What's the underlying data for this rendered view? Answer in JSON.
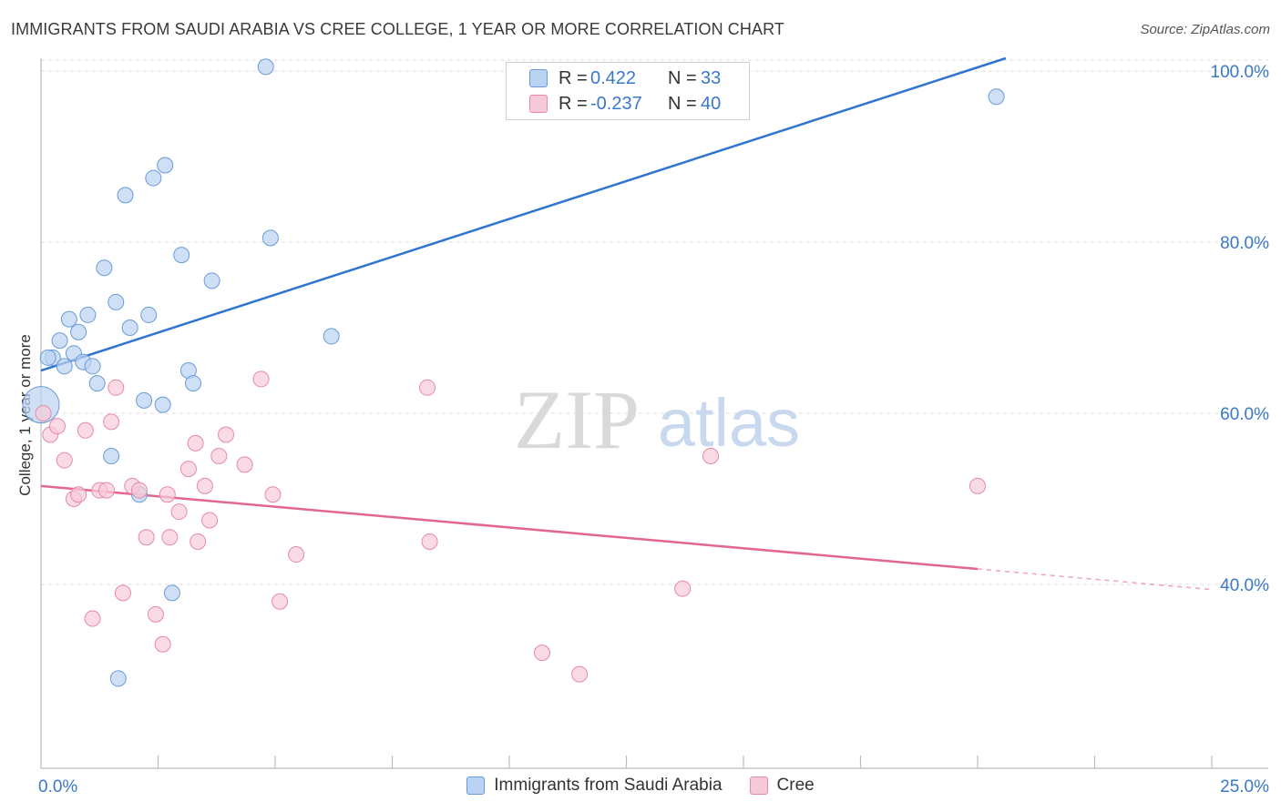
{
  "header": {
    "title": "IMMIGRANTS FROM SAUDI ARABIA VS CREE COLLEGE, 1 YEAR OR MORE CORRELATION CHART",
    "source": "Source: ZipAtlas.com"
  },
  "watermark": {
    "zip": "ZIP",
    "atlas": "atlas"
  },
  "colors": {
    "blue_fill": "#bad3f2",
    "blue_stroke": "#6a9bd8",
    "blue_line": "#2f74d0",
    "pink_fill": "#f8cad8",
    "pink_stroke": "#e68aa6",
    "pink_line": "#e3668f",
    "accent_text": "#3a78c9",
    "grid": "#dedede"
  },
  "stats": {
    "blue": {
      "r_label": "R =",
      "r_value": "0.422",
      "n_label": "N =",
      "n_value": "33"
    },
    "pink": {
      "r_label": "R =",
      "r_value": "-0.237",
      "n_label": "N =",
      "n_value": "40"
    }
  },
  "legend": {
    "blue_label": "Immigrants from Saudi Arabia",
    "pink_label": "Cree"
  },
  "chart_data": {
    "type": "scatter",
    "title": "IMMIGRANTS FROM SAUDI ARABIA VS CREE COLLEGE, 1 YEAR OR MORE CORRELATION CHART",
    "xlabel": "",
    "ylabel": "College, 1 year or more",
    "xlim": [
      0,
      25
    ],
    "ylim": [
      18.5,
      101.5
    ],
    "x_tick_labels": [
      {
        "value": 0,
        "label": "0.0%"
      },
      {
        "value": 25,
        "label": "25.0%"
      }
    ],
    "x_minor_ticks": [
      2.5,
      5,
      7.5,
      10,
      12.5,
      15,
      17.5,
      20,
      22.5,
      25
    ],
    "y_ticks": [
      {
        "value": 40,
        "label": "40.0%"
      },
      {
        "value": 60,
        "label": "60.0%"
      },
      {
        "value": 80,
        "label": "80.0%"
      },
      {
        "value": 100,
        "label": "100.0%"
      }
    ],
    "grid": true,
    "series": [
      {
        "name": "Immigrants from Saudi Arabia",
        "color_key": "blue",
        "points": [
          {
            "x": 0.0,
            "y": 61.0,
            "size": "large"
          },
          {
            "x": 0.25,
            "y": 66.5
          },
          {
            "x": 0.4,
            "y": 68.5
          },
          {
            "x": 0.5,
            "y": 65.5
          },
          {
            "x": 0.6,
            "y": 71.0
          },
          {
            "x": 0.7,
            "y": 67.0
          },
          {
            "x": 0.8,
            "y": 69.5
          },
          {
            "x": 0.9,
            "y": 66.0
          },
          {
            "x": 1.0,
            "y": 71.5
          },
          {
            "x": 1.1,
            "y": 65.5
          },
          {
            "x": 1.2,
            "y": 63.5
          },
          {
            "x": 1.35,
            "y": 77.0
          },
          {
            "x": 1.5,
            "y": 55.0
          },
          {
            "x": 1.6,
            "y": 73.0
          },
          {
            "x": 1.8,
            "y": 85.5
          },
          {
            "x": 1.9,
            "y": 70.0
          },
          {
            "x": 2.1,
            "y": 50.5
          },
          {
            "x": 2.2,
            "y": 61.5
          },
          {
            "x": 2.3,
            "y": 71.5
          },
          {
            "x": 2.4,
            "y": 87.5
          },
          {
            "x": 2.65,
            "y": 89.0
          },
          {
            "x": 2.6,
            "y": 61.0
          },
          {
            "x": 2.8,
            "y": 39.0
          },
          {
            "x": 3.0,
            "y": 78.5
          },
          {
            "x": 3.15,
            "y": 65.0
          },
          {
            "x": 3.25,
            "y": 63.5
          },
          {
            "x": 3.65,
            "y": 75.5
          },
          {
            "x": 4.8,
            "y": 100.5
          },
          {
            "x": 4.9,
            "y": 80.5
          },
          {
            "x": 6.2,
            "y": 69.0
          },
          {
            "x": 1.65,
            "y": 29.0
          },
          {
            "x": 0.15,
            "y": 66.5
          },
          {
            "x": 20.4,
            "y": 97.0
          }
        ],
        "trend": {
          "x0": 0.0,
          "y0": 65.0,
          "x1": 20.6,
          "y1": 101.5
        }
      },
      {
        "name": "Cree",
        "color_key": "pink",
        "points": [
          {
            "x": 0.05,
            "y": 60.0
          },
          {
            "x": 0.2,
            "y": 57.5
          },
          {
            "x": 0.35,
            "y": 58.5
          },
          {
            "x": 0.5,
            "y": 54.5
          },
          {
            "x": 0.7,
            "y": 50.0
          },
          {
            "x": 0.8,
            "y": 50.5
          },
          {
            "x": 0.95,
            "y": 58.0
          },
          {
            "x": 1.1,
            "y": 36.0
          },
          {
            "x": 1.25,
            "y": 51.0
          },
          {
            "x": 1.4,
            "y": 51.0
          },
          {
            "x": 1.5,
            "y": 59.0
          },
          {
            "x": 1.6,
            "y": 63.0
          },
          {
            "x": 1.75,
            "y": 39.0
          },
          {
            "x": 1.95,
            "y": 51.5
          },
          {
            "x": 2.1,
            "y": 51.0
          },
          {
            "x": 2.25,
            "y": 45.5
          },
          {
            "x": 2.45,
            "y": 36.5
          },
          {
            "x": 2.6,
            "y": 33.0
          },
          {
            "x": 2.7,
            "y": 50.5
          },
          {
            "x": 2.75,
            "y": 45.5
          },
          {
            "x": 2.95,
            "y": 48.5
          },
          {
            "x": 3.15,
            "y": 53.5
          },
          {
            "x": 3.3,
            "y": 56.5
          },
          {
            "x": 3.35,
            "y": 45.0
          },
          {
            "x": 3.5,
            "y": 51.5
          },
          {
            "x": 3.6,
            "y": 47.5
          },
          {
            "x": 3.8,
            "y": 55.0
          },
          {
            "x": 3.95,
            "y": 57.5
          },
          {
            "x": 4.35,
            "y": 54.0
          },
          {
            "x": 4.7,
            "y": 64.0
          },
          {
            "x": 4.95,
            "y": 50.5
          },
          {
            "x": 5.1,
            "y": 38.0
          },
          {
            "x": 5.45,
            "y": 43.5
          },
          {
            "x": 8.25,
            "y": 63.0
          },
          {
            "x": 8.3,
            "y": 45.0
          },
          {
            "x": 10.7,
            "y": 32.0
          },
          {
            "x": 11.5,
            "y": 29.5
          },
          {
            "x": 13.7,
            "y": 39.5
          },
          {
            "x": 14.3,
            "y": 55.0
          },
          {
            "x": 20.0,
            "y": 51.5
          }
        ],
        "trend": {
          "x0": 0.0,
          "y0": 51.5,
          "x1": 20.0,
          "y1": 41.8
        },
        "trend_extension": {
          "x0": 20.0,
          "y0": 41.8,
          "x1": 25.0,
          "y1": 39.4
        }
      }
    ]
  }
}
